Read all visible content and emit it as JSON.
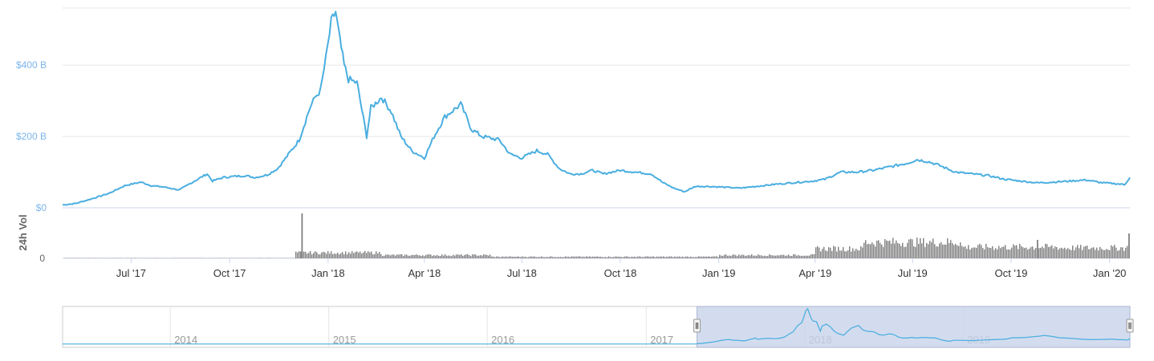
{
  "chart_data": [
    {
      "type": "line",
      "name": "market-cap",
      "y_unit_prefix": "$",
      "ytick_labels": [
        "$0",
        "$200 B",
        "$400 B"
      ],
      "ytick_values": [
        0,
        200,
        400
      ],
      "ylim": [
        0,
        560
      ],
      "grid": true,
      "line_color": "#4aaee0",
      "x_range": [
        "2017-04-28",
        "2020-01-20"
      ],
      "xtick_labels": [
        "Jul '17",
        "Oct '17",
        "Jan '18",
        "Apr '18",
        "Jul '18",
        "Oct '18",
        "Jan '19",
        "Apr '19",
        "Jul '19",
        "Oct '19",
        "Jan '20"
      ],
      "xtick_dates": [
        "2017-07-01",
        "2017-10-01",
        "2018-01-01",
        "2018-04-01",
        "2018-07-01",
        "2018-10-01",
        "2019-01-01",
        "2019-04-01",
        "2019-07-01",
        "2019-10-01",
        "2020-01-01"
      ],
      "series": [
        {
          "x": [
            "2017-04-28",
            "2017-05-10",
            "2017-05-25",
            "2017-06-10",
            "2017-06-25",
            "2017-07-10",
            "2017-07-20",
            "2017-08-01",
            "2017-08-15",
            "2017-08-31",
            "2017-09-10",
            "2017-09-15",
            "2017-09-25",
            "2017-10-05",
            "2017-10-15",
            "2017-10-25",
            "2017-11-05",
            "2017-11-15",
            "2017-11-25",
            "2017-12-05",
            "2017-12-15",
            "2017-12-20",
            "2017-12-25",
            "2017-12-30",
            "2018-01-04",
            "2018-01-08",
            "2018-01-12",
            "2018-01-16",
            "2018-01-20",
            "2018-01-28",
            "2018-02-06",
            "2018-02-10",
            "2018-02-20",
            "2018-03-01",
            "2018-03-10",
            "2018-03-20",
            "2018-04-01",
            "2018-04-10",
            "2018-04-20",
            "2018-05-05",
            "2018-05-15",
            "2018-05-25",
            "2018-06-10",
            "2018-06-20",
            "2018-07-01",
            "2018-07-15",
            "2018-07-25",
            "2018-08-05",
            "2018-08-15",
            "2018-08-25",
            "2018-09-05",
            "2018-09-15",
            "2018-10-01",
            "2018-10-15",
            "2018-10-30",
            "2018-11-10",
            "2018-11-20",
            "2018-11-30",
            "2018-12-10",
            "2018-12-20",
            "2019-01-05",
            "2019-01-20",
            "2019-02-05",
            "2019-02-20",
            "2019-03-10",
            "2019-03-30",
            "2019-04-10",
            "2019-04-25",
            "2019-05-10",
            "2019-05-25",
            "2019-06-10",
            "2019-06-26",
            "2019-07-05",
            "2019-07-15",
            "2019-07-25",
            "2019-08-10",
            "2019-08-25",
            "2019-09-10",
            "2019-09-25",
            "2019-10-10",
            "2019-10-25",
            "2019-11-10",
            "2019-11-25",
            "2019-12-10",
            "2019-12-25",
            "2020-01-05",
            "2020-01-15",
            "2020-01-20"
          ],
          "values": [
            8,
            12,
            25,
            40,
            62,
            72,
            62,
            58,
            50,
            78,
            95,
            75,
            85,
            88,
            90,
            85,
            92,
            110,
            150,
            190,
            280,
            310,
            330,
            420,
            520,
            550,
            470,
            400,
            360,
            350,
            200,
            280,
            310,
            270,
            200,
            160,
            140,
            200,
            255,
            290,
            220,
            200,
            190,
            150,
            140,
            160,
            150,
            110,
            95,
            95,
            105,
            95,
            105,
            100,
            95,
            70,
            55,
            45,
            60,
            60,
            58,
            55,
            60,
            65,
            70,
            75,
            80,
            100,
            100,
            105,
            115,
            125,
            135,
            130,
            120,
            100,
            95,
            90,
            80,
            75,
            70,
            72,
            75,
            78,
            70,
            68,
            65,
            85
          ]
        }
      ]
    },
    {
      "type": "bar",
      "name": "volume",
      "ylabel": "24h Vol",
      "ytick_labels": [
        "0"
      ],
      "bar_color": "#808080",
      "spike_date": "2017-12-07",
      "level_description": "low 2017, higher Dec 2017–Feb 2018, low 2018, high Apr 2019 onward with peaks around Jun–Jul 2019 and Oct 2019, final spike Jan 2020"
    },
    {
      "type": "area",
      "name": "navigator",
      "year_labels": [
        "2014",
        "2015",
        "2016",
        "2017",
        "2018",
        "2019"
      ],
      "selected_range": [
        "2017-04-28",
        "2020-01-20"
      ],
      "mask_color": "#c8d3ea",
      "line_color": "#4aaee0"
    }
  ]
}
